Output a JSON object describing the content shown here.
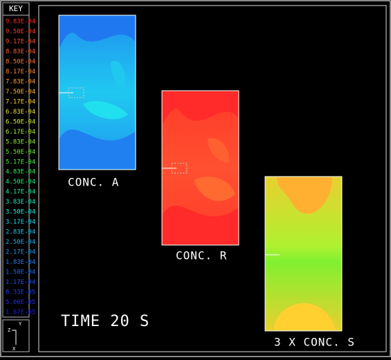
{
  "key": {
    "title": "KEY",
    "entries": [
      {
        "label": "9.83E-04",
        "color": "#ff2a2a"
      },
      {
        "label": "9.50E-04",
        "color": "#ff3a2a"
      },
      {
        "label": "9.17E-04",
        "color": "#ff4d2a"
      },
      {
        "label": "8.83E-04",
        "color": "#ff6030"
      },
      {
        "label": "8.50E-04",
        "color": "#ff7530"
      },
      {
        "label": "8.17E-04",
        "color": "#ff8a30"
      },
      {
        "label": "7.83E-04",
        "color": "#ffa030"
      },
      {
        "label": "7.50E-04",
        "color": "#ffb830"
      },
      {
        "label": "7.17E-04",
        "color": "#ffd030"
      },
      {
        "label": "6.83E-04",
        "color": "#e8e030"
      },
      {
        "label": "6.50E-04",
        "color": "#d0f030"
      },
      {
        "label": "6.17E-04",
        "color": "#b0f030"
      },
      {
        "label": "5.83E-04",
        "color": "#90f030"
      },
      {
        "label": "5.50E-04",
        "color": "#70f030"
      },
      {
        "label": "5.17E-04",
        "color": "#50f040"
      },
      {
        "label": "4.83E-04",
        "color": "#30f060"
      },
      {
        "label": "4.50E-04",
        "color": "#20f080"
      },
      {
        "label": "4.17E-04",
        "color": "#20f0a0"
      },
      {
        "label": "3.83E-04",
        "color": "#20f0c0"
      },
      {
        "label": "3.50E-04",
        "color": "#20f0e0"
      },
      {
        "label": "3.17E-04",
        "color": "#20e0f0"
      },
      {
        "label": "2.83E-04",
        "color": "#20c8f0"
      },
      {
        "label": "2.50E-04",
        "color": "#20b0f0"
      },
      {
        "label": "2.17E-04",
        "color": "#2098f0"
      },
      {
        "label": "1.83E-04",
        "color": "#2080f0"
      },
      {
        "label": "1.50E-04",
        "color": "#2068f0"
      },
      {
        "label": "1.17E-04",
        "color": "#2050f0"
      },
      {
        "label": "8.33E-05",
        "color": "#2040f0"
      },
      {
        "label": "5.00E-05",
        "color": "#2030e8"
      },
      {
        "label": "1.67E-05",
        "color": "#2020e0"
      }
    ]
  },
  "axes": {
    "z": "Z",
    "y": "Y",
    "x": "X"
  },
  "panels": [
    {
      "label": "CONC. A"
    },
    {
      "label": "CONC. R"
    },
    {
      "label": "3 X CONC. S"
    }
  ],
  "time": "TIME 20 S"
}
